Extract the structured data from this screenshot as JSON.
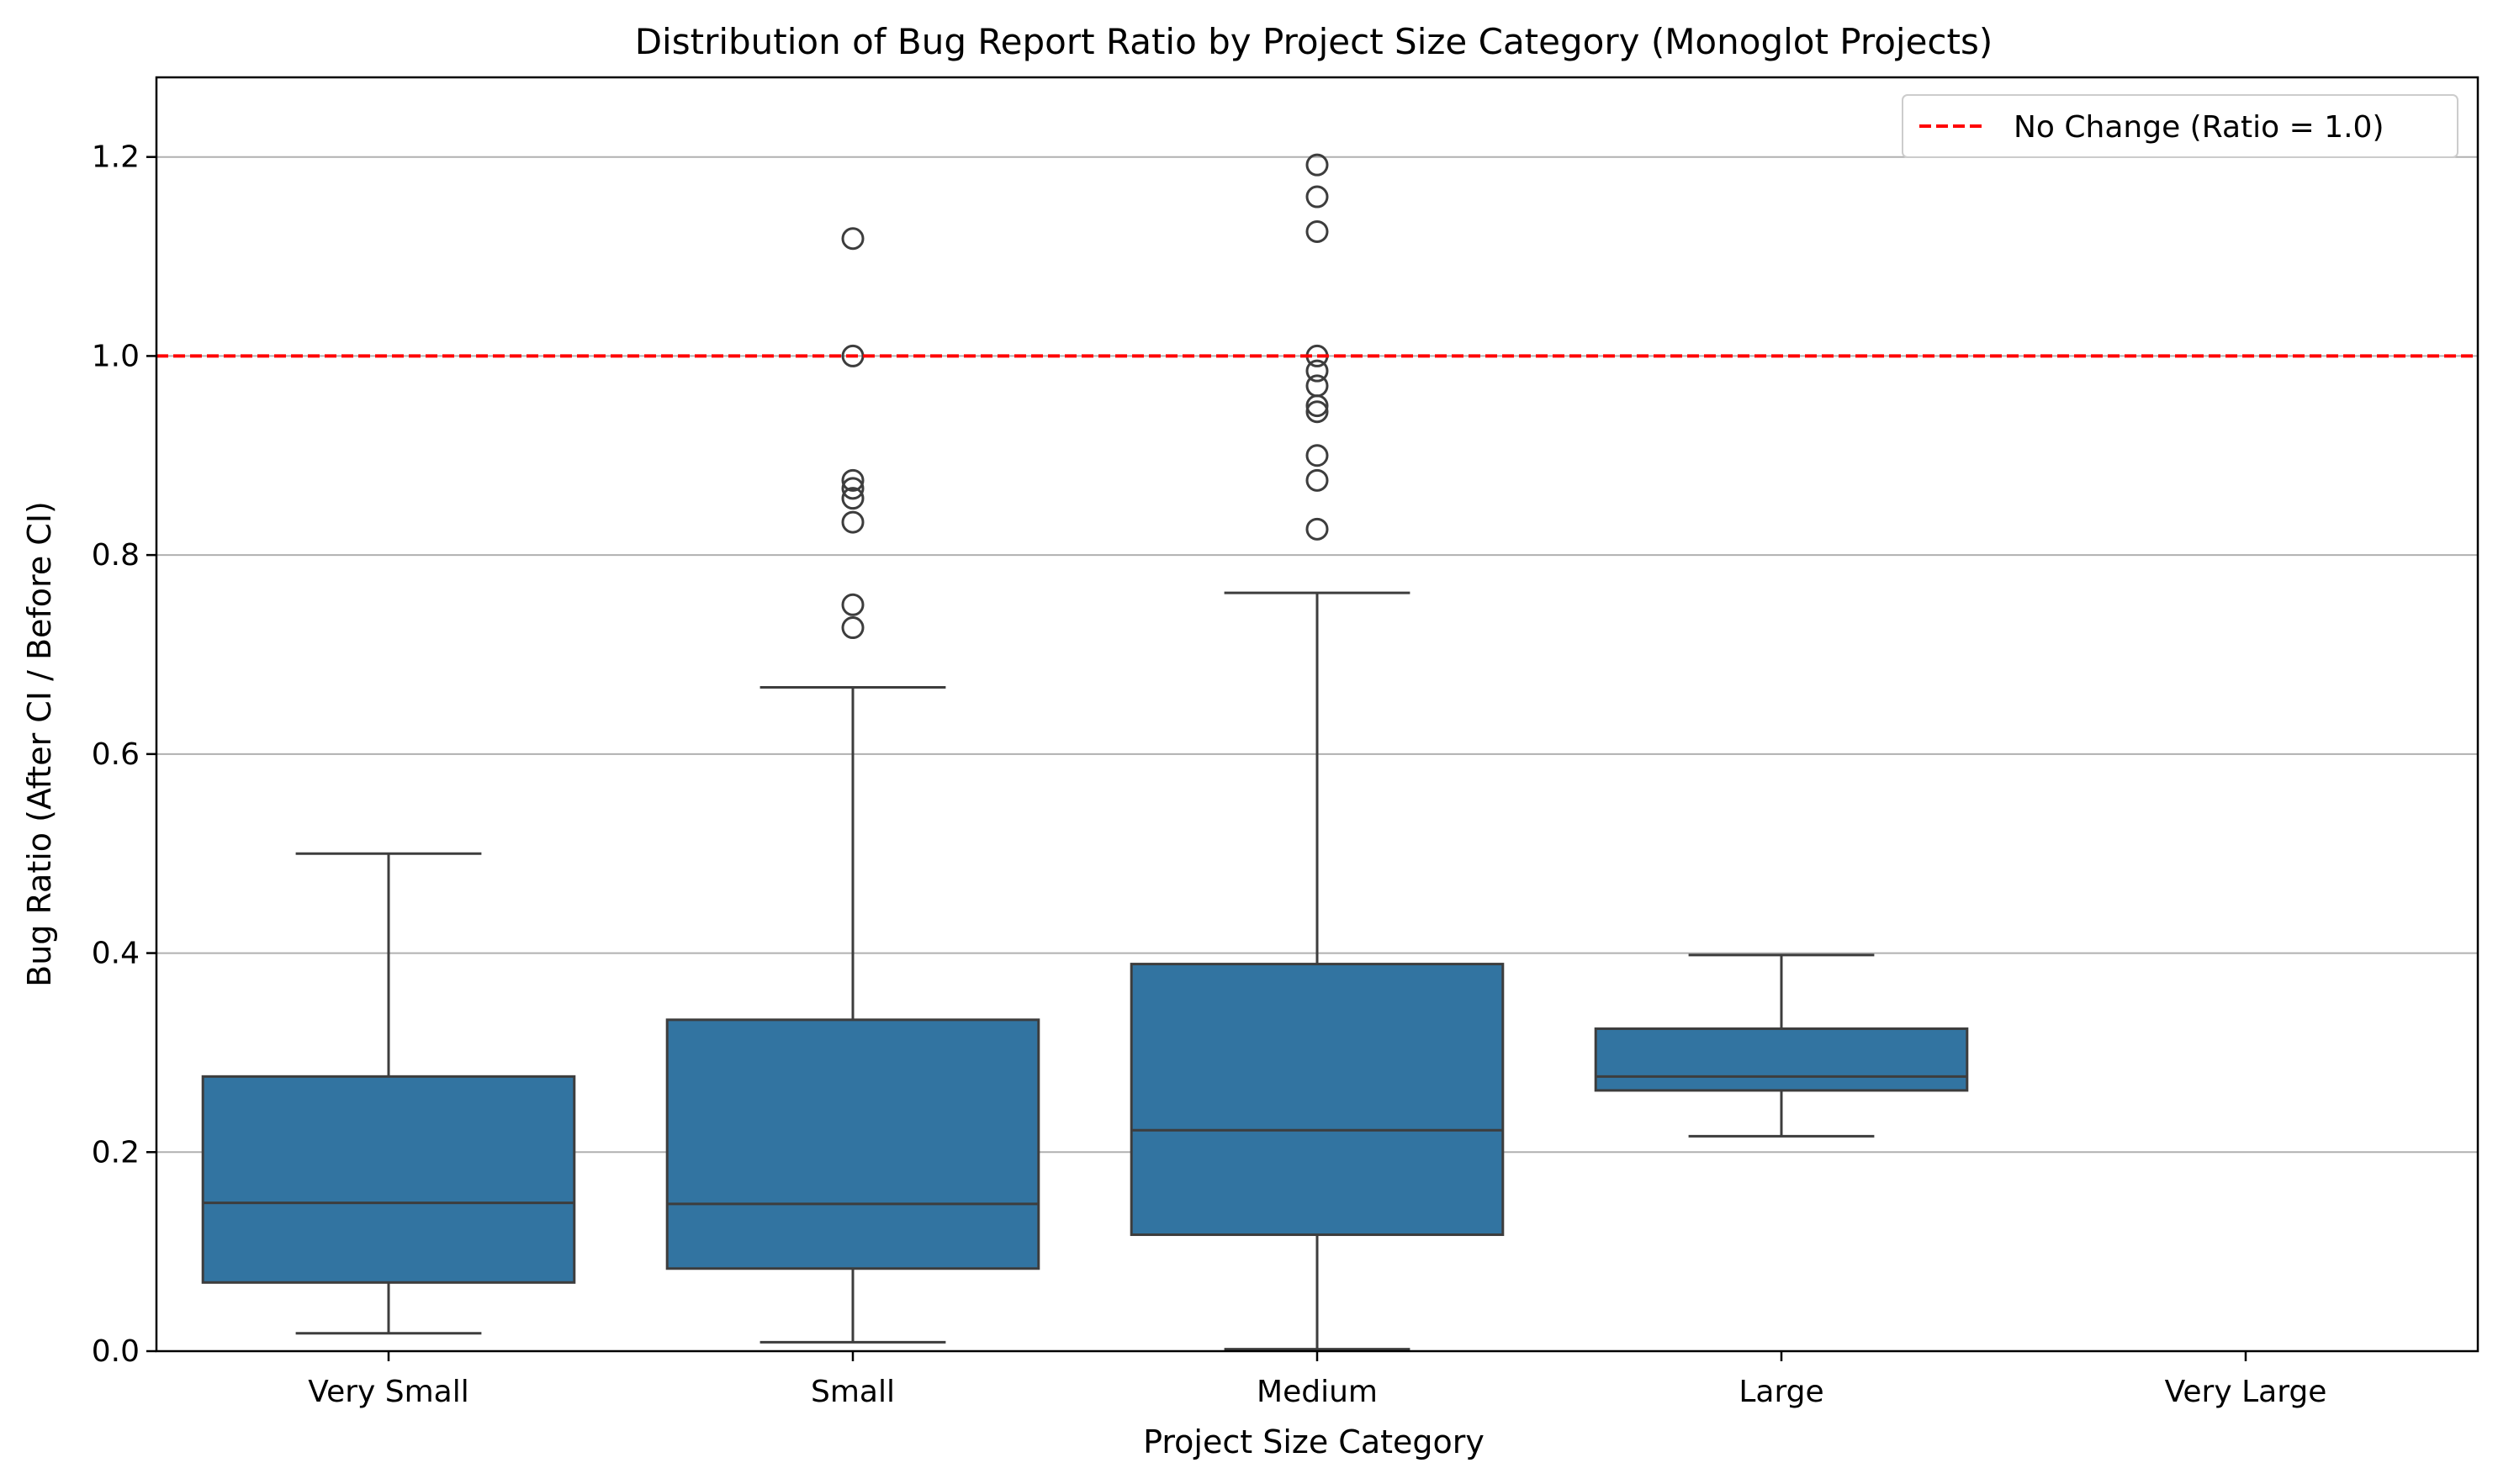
{
  "chart_data": {
    "type": "box",
    "title": "Distribution of Bug Report Ratio by Project Size Category (Monoglot Projects)",
    "xlabel": "Project Size Category",
    "ylabel": "Bug Ratio (After CI / Before CI)",
    "ylim": [
      0,
      1.28
    ],
    "yticks": [
      0.0,
      0.2,
      0.4,
      0.6,
      0.8,
      1.0,
      1.2
    ],
    "ytick_labels": [
      "0.0",
      "0.2",
      "0.4",
      "0.6",
      "0.8",
      "1.0",
      "1.2"
    ],
    "grid": "y",
    "categories": [
      "Very Small",
      "Small",
      "Medium",
      "Large",
      "Very Large"
    ],
    "boxes": [
      {
        "category": "Very Small",
        "whisker_low": 0.018,
        "q1": 0.069,
        "median": 0.149,
        "q3": 0.276,
        "whisker_high": 0.5,
        "outliers": []
      },
      {
        "category": "Small",
        "whisker_low": 0.009,
        "q1": 0.083,
        "median": 0.148,
        "q3": 0.333,
        "whisker_high": 0.667,
        "outliers": [
          1.118,
          1.0,
          0.875,
          0.867,
          0.857,
          0.833,
          0.75,
          0.727
        ]
      },
      {
        "category": "Medium",
        "whisker_low": 0.002,
        "q1": 0.117,
        "median": 0.222,
        "q3": 0.389,
        "whisker_high": 0.762,
        "outliers": [
          1.192,
          1.16,
          1.125,
          1.0,
          0.985,
          0.97,
          0.95,
          0.944,
          0.9,
          0.875,
          0.826
        ]
      },
      {
        "category": "Large",
        "whisker_low": 0.216,
        "q1": 0.262,
        "median": 0.276,
        "q3": 0.324,
        "whisker_high": 0.398,
        "outliers": []
      }
    ],
    "reference_line": {
      "value": 1.0,
      "label": "No Change (Ratio = 1.0)",
      "color": "#ff0000",
      "style": "dashed"
    },
    "legend": {
      "placement": "top-right"
    },
    "colors": {
      "box_fill": "#3274a1",
      "box_edge": "#3d3d3d",
      "grid": "#b0b0b0"
    }
  }
}
